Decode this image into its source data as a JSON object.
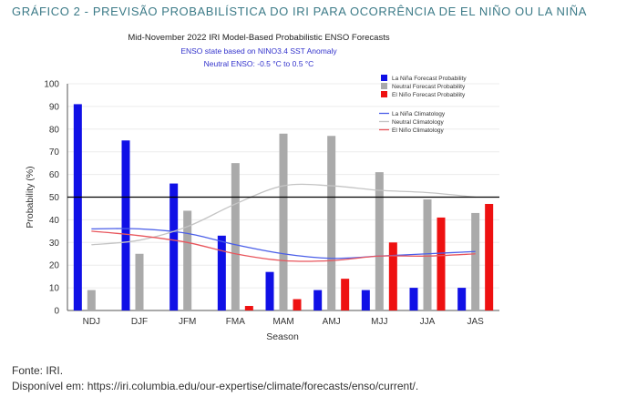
{
  "caption": "GRÁFICO 2 - PREVISÃO PROBABILÍSTICA DO IRI PARA OCORRÊNCIA DE EL NIÑO OU LA NIÑA",
  "footer": {
    "source": "Fonte: IRI.",
    "available": "Disponível em: https://iri.columbia.edu/our-expertise/climate/forecasts/enso/current/."
  },
  "chart_data": {
    "type": "bar",
    "title": "Mid-November 2022 IRI Model-Based Probabilistic ENSO Forecasts",
    "subtitle_1": "ENSO state based on NINO3.4 SST Anomaly",
    "subtitle_2": "Neutral ENSO: -0.5 °C to 0.5 °C",
    "xlabel": "Season",
    "ylabel": "Probability (%)",
    "ylim": [
      0,
      100
    ],
    "yticks": [
      0,
      10,
      20,
      30,
      40,
      50,
      60,
      70,
      80,
      90,
      100
    ],
    "reference_line": 50,
    "categories": [
      "NDJ",
      "DJF",
      "JFM",
      "FMA",
      "MAM",
      "AMJ",
      "MJJ",
      "JJA",
      "JAS"
    ],
    "series": [
      {
        "name": "La Niña Forecast Probability",
        "color": "#1010e6",
        "values": [
          91,
          75,
          56,
          33,
          17,
          9,
          9,
          10,
          10
        ]
      },
      {
        "name": "Neutral Forecast Probability",
        "color": "#aaaaaa",
        "values": [
          9,
          25,
          44,
          65,
          78,
          77,
          61,
          49,
          43
        ]
      },
      {
        "name": "El Niño Forecast Probability",
        "color": "#ee1111",
        "values": [
          0,
          0,
          0,
          2,
          5,
          14,
          30,
          41,
          47
        ]
      }
    ],
    "climatology": [
      {
        "name": "La Niña Climatology",
        "color": "#4a5ee8",
        "values": [
          36,
          36,
          34,
          29,
          25,
          23,
          24,
          25,
          26
        ]
      },
      {
        "name": "Neutral Climatology",
        "color": "#c4c4c4",
        "values": [
          29,
          31,
          37,
          47,
          55,
          55,
          53,
          52,
          50
        ]
      },
      {
        "name": "El Niño Climatology",
        "color": "#e8555c",
        "values": [
          35,
          33,
          30,
          25,
          22,
          22,
          24,
          24,
          25
        ]
      }
    ]
  }
}
